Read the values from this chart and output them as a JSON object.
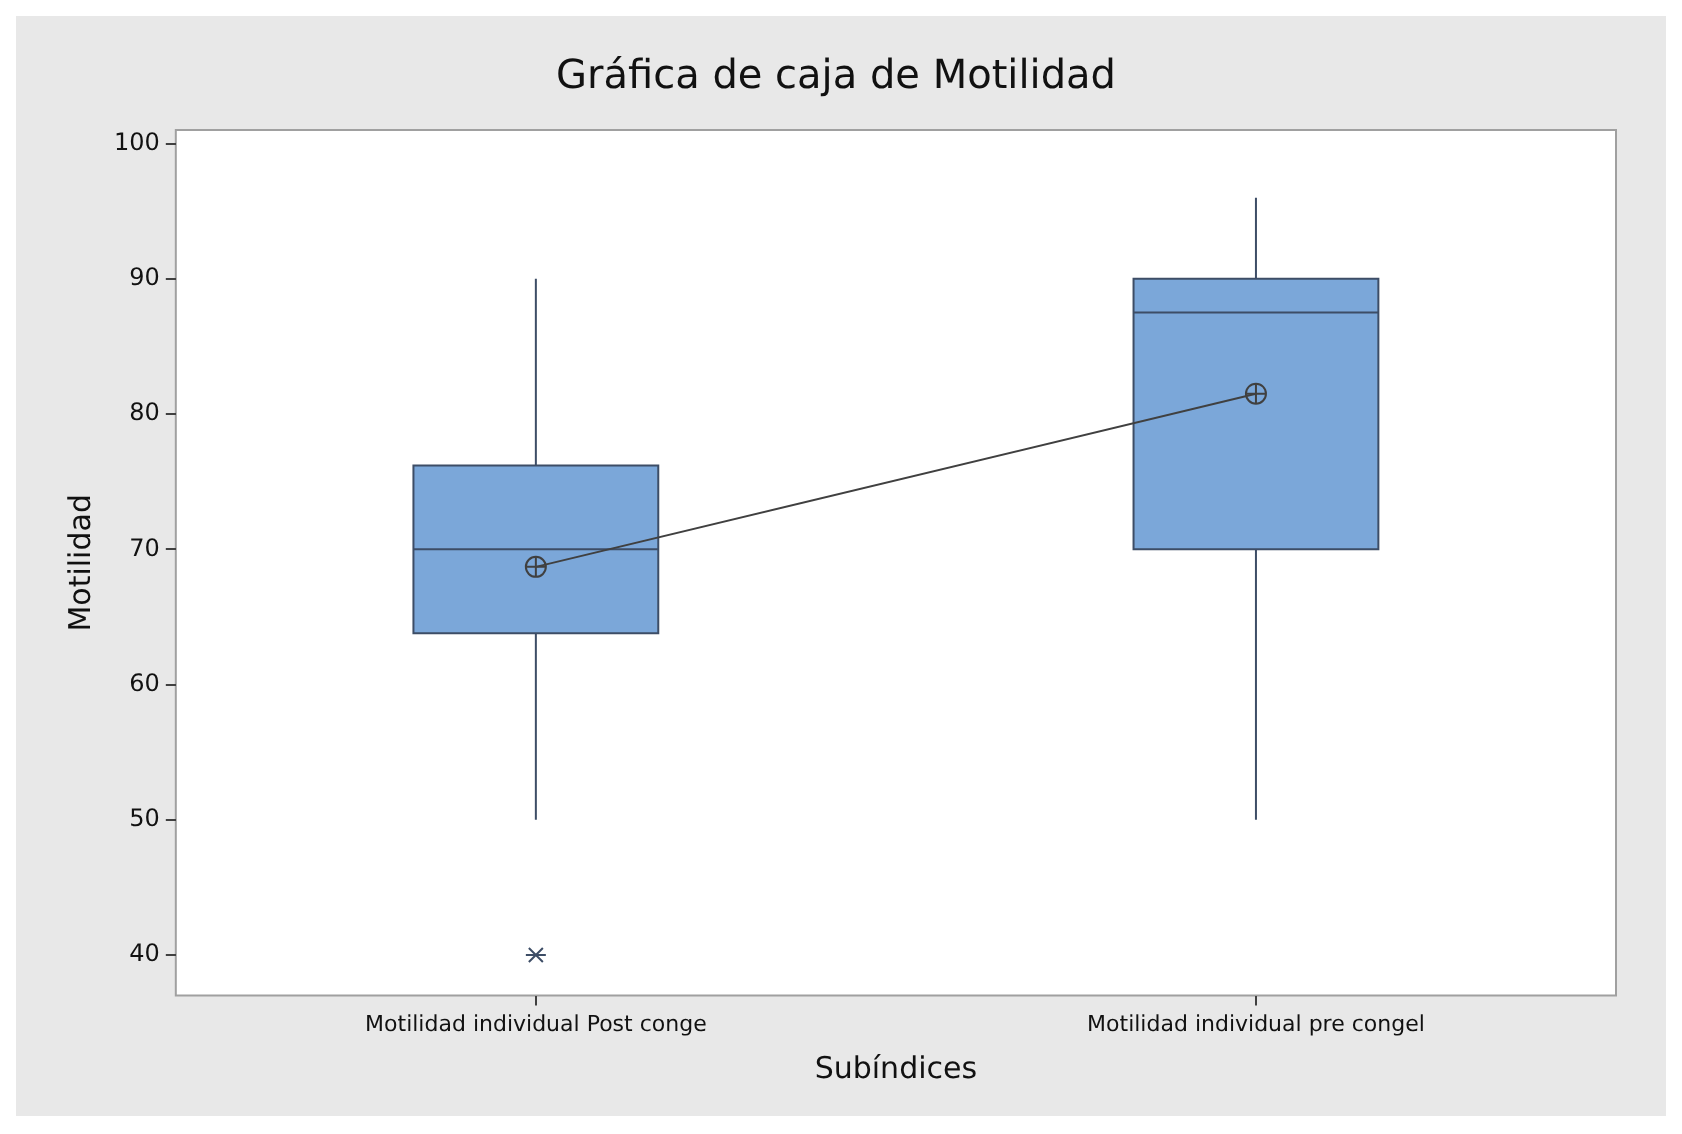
{
  "chart_data": {
    "type": "box",
    "title": "Gráfica de caja de Motilidad",
    "xlabel": "Subíndices",
    "ylabel": "Motilidad",
    "categories": [
      "Motilidad individual Post conge",
      "Motilidad individual pre congel"
    ],
    "color": "#7ba7d9",
    "boxes": [
      {
        "low": 50,
        "q1": 63.8,
        "median": 70,
        "q3": 76.2,
        "high": 90,
        "mean": 68.7,
        "outliers": [
          40
        ]
      },
      {
        "low": 50,
        "q1": 70,
        "median": 87.5,
        "q3": 90,
        "high": 96,
        "mean": 81.5
      }
    ],
    "series": [
      {
        "type": "line",
        "x": [
          "Motilidad individual Post conge",
          "Motilidad individual pre congel"
        ],
        "values": [
          68.7,
          81.5
        ],
        "color": "#404040"
      }
    ],
    "ylim": [
      37,
      101
    ],
    "yticks": [
      40,
      50,
      60,
      70,
      80,
      90,
      100
    ],
    "grid": false,
    "legend": false
  }
}
